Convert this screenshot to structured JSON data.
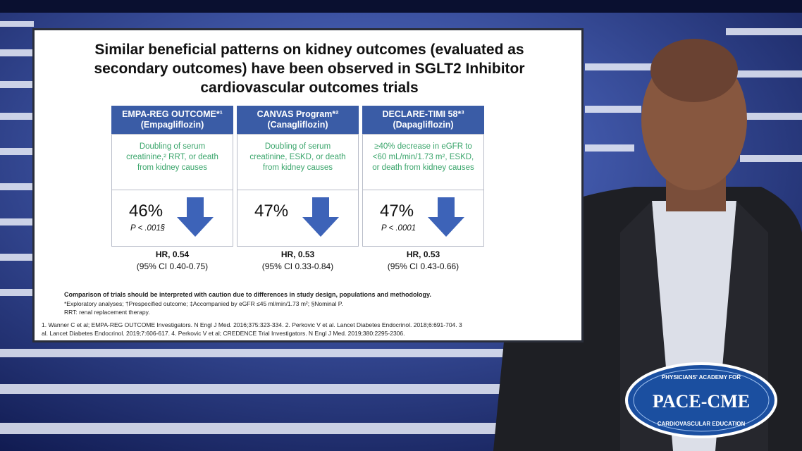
{
  "slide": {
    "title": "Similar beneficial patterns on kidney outcomes (evaluated as secondary outcomes) have been observed in SGLT2 Inhibitor cardiovascular outcomes trials",
    "trials": [
      {
        "name": "EMPA-REG OUTCOME*¹",
        "drug": "(Empagliflozin)",
        "outcome": "Doubling of serum creatinine,² RRT, or death from kidney causes",
        "reduction": "46%",
        "p": "P < .001§",
        "hr": "HR, 0.54",
        "ci": "(95% CI 0.40-0.75)"
      },
      {
        "name": "CANVAS Program*²",
        "drug": "(Canagliflozin)",
        "outcome": "Doubling of serum creatinine, ESKD, or death from kidney causes",
        "reduction": "47%",
        "hr": "HR, 0.53",
        "ci": "(95% CI 0.33-0.84)"
      },
      {
        "name": "DECLARE-TIMI 58*³",
        "drug": "(Dapagliflozin)",
        "outcome": "≥40% decrease in eGFR to <60 mL/min/1.73 m², ESKD, or death from kidney causes",
        "reduction": "47%",
        "p": "P < .0001",
        "hr": "HR, 0.53",
        "ci": "(95% CI 0.43-0.66)"
      }
    ],
    "caution": "Comparison of trials should be interpreted with caution due to differences in study design, populations and methodology.",
    "footnotes": [
      "*Exploratory analyses; †Prespecified outcome; ‡Accompanied by eGFR ≤45 ml/min/1.73 m²; §Nominal P.",
      "RRT: renal replacement therapy."
    ],
    "references": [
      "1. Wanner C et al; EMPA-REG OUTCOME Investigators. N Engl J Med. 2016;375:323-334. 2. Perkovic V et al. Lancet Diabetes Endocrinol. 2018;6:691-704. 3",
      "al. Lancet Diabetes Endocrinol. 2019;7:606-617. 4. Perkovic V et al; CREDENCE Trial Investigators. N Engl J Med. 2019;380:2295-2306."
    ]
  },
  "logo": {
    "top": "PHYSICIANS' ACADEMY FOR",
    "name": "PACE-CME",
    "bottom": "CARDIOVASCULAR EDUCATION"
  }
}
